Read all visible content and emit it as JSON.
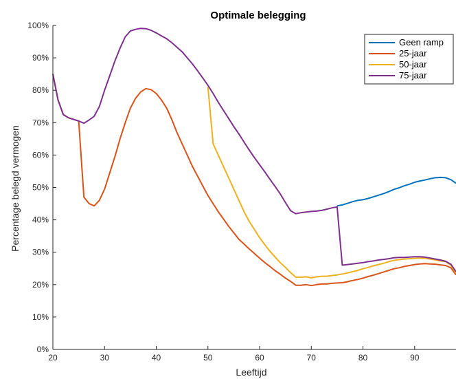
{
  "chart_data": {
    "type": "line",
    "title": "Optimale belegging",
    "xlabel": "Leeftijd",
    "ylabel": "Percentage belegd vermogen",
    "xlim": [
      20,
      98
    ],
    "ylim": [
      0,
      100
    ],
    "xticks": [
      20,
      30,
      40,
      50,
      60,
      70,
      80,
      90
    ],
    "yticks": [
      0,
      10,
      20,
      30,
      40,
      50,
      60,
      70,
      80,
      90,
      100
    ],
    "ytick_suffix": "%",
    "grid": false,
    "legend_position": "top-right",
    "series": [
      {
        "name": "Geen ramp",
        "color": "#0072bd",
        "points": [
          [
            75,
            44.3
          ],
          [
            76,
            44.6
          ],
          [
            77,
            45.1
          ],
          [
            78,
            45.6
          ],
          [
            79,
            46.0
          ],
          [
            80,
            46.2
          ],
          [
            81,
            46.6
          ],
          [
            82,
            47.1
          ],
          [
            83,
            47.6
          ],
          [
            84,
            48.1
          ],
          [
            85,
            48.7
          ],
          [
            86,
            49.4
          ],
          [
            87,
            49.9
          ],
          [
            88,
            50.5
          ],
          [
            89,
            51.0
          ],
          [
            90,
            51.6
          ],
          [
            91,
            52.0
          ],
          [
            92,
            52.3
          ],
          [
            93,
            52.7
          ],
          [
            94,
            53.0
          ],
          [
            95,
            53.1
          ],
          [
            96,
            53.0
          ],
          [
            97,
            52.4
          ],
          [
            98,
            51.3
          ]
        ]
      },
      {
        "name": "25-jaar",
        "color": "#d95319",
        "points": [
          [
            20,
            85.0
          ],
          [
            21,
            77.0
          ],
          [
            22,
            72.5
          ],
          [
            23,
            71.5
          ],
          [
            24,
            71.0
          ],
          [
            25,
            70.5
          ],
          [
            26,
            47.0
          ],
          [
            27,
            45.0
          ],
          [
            28,
            44.3
          ],
          [
            29,
            46.0
          ],
          [
            30,
            49.5
          ],
          [
            31,
            54.5
          ],
          [
            32,
            59.5
          ],
          [
            33,
            65.0
          ],
          [
            34,
            70.0
          ],
          [
            35,
            74.5
          ],
          [
            36,
            77.5
          ],
          [
            37,
            79.5
          ],
          [
            38,
            80.5
          ],
          [
            39,
            80.2
          ],
          [
            40,
            79.0
          ],
          [
            41,
            77.0
          ],
          [
            42,
            74.5
          ],
          [
            43,
            71.0
          ],
          [
            44,
            67.0
          ],
          [
            45,
            63.5
          ],
          [
            46,
            60.0
          ],
          [
            47,
            56.5
          ],
          [
            48,
            53.5
          ],
          [
            49,
            50.5
          ],
          [
            50,
            47.5
          ],
          [
            51,
            45.0
          ],
          [
            52,
            42.5
          ],
          [
            53,
            40.3
          ],
          [
            54,
            38.0
          ],
          [
            55,
            36.0
          ],
          [
            56,
            34.0
          ],
          [
            57,
            32.5
          ],
          [
            58,
            31.0
          ],
          [
            59,
            29.6
          ],
          [
            60,
            28.2
          ],
          [
            61,
            26.8
          ],
          [
            62,
            25.6
          ],
          [
            63,
            24.3
          ],
          [
            64,
            23.2
          ],
          [
            65,
            22.0
          ],
          [
            66,
            21.0
          ],
          [
            67,
            19.8
          ],
          [
            68,
            19.8
          ],
          [
            69,
            20.0
          ],
          [
            70,
            19.7
          ],
          [
            71,
            20.0
          ],
          [
            72,
            20.2
          ],
          [
            73,
            20.2
          ],
          [
            74,
            20.4
          ],
          [
            75,
            20.5
          ],
          [
            76,
            20.6
          ],
          [
            77,
            20.9
          ],
          [
            78,
            21.3
          ],
          [
            79,
            21.6
          ],
          [
            80,
            22.0
          ],
          [
            81,
            22.5
          ],
          [
            82,
            22.9
          ],
          [
            83,
            23.4
          ],
          [
            84,
            23.9
          ],
          [
            85,
            24.4
          ],
          [
            86,
            24.9
          ],
          [
            87,
            25.2
          ],
          [
            88,
            25.6
          ],
          [
            89,
            25.9
          ],
          [
            90,
            26.2
          ],
          [
            91,
            26.4
          ],
          [
            92,
            26.5
          ],
          [
            93,
            26.4
          ],
          [
            94,
            26.3
          ],
          [
            95,
            26.1
          ],
          [
            96,
            25.9
          ],
          [
            97,
            25.2
          ],
          [
            98,
            23.0
          ]
        ]
      },
      {
        "name": "50-jaar",
        "color": "#edb120",
        "points": [
          [
            50,
            81.0
          ],
          [
            51,
            63.5
          ],
          [
            52,
            60.0
          ],
          [
            53,
            56.5
          ],
          [
            54,
            53.0
          ],
          [
            55,
            49.5
          ],
          [
            56,
            46.0
          ],
          [
            57,
            42.5
          ],
          [
            58,
            39.5
          ],
          [
            59,
            37.0
          ],
          [
            60,
            34.5
          ],
          [
            61,
            32.3
          ],
          [
            62,
            30.3
          ],
          [
            63,
            28.5
          ],
          [
            64,
            26.8
          ],
          [
            65,
            25.3
          ],
          [
            66,
            23.7
          ],
          [
            67,
            22.3
          ],
          [
            68,
            22.3
          ],
          [
            69,
            22.4
          ],
          [
            70,
            22.1
          ],
          [
            71,
            22.4
          ],
          [
            72,
            22.6
          ],
          [
            73,
            22.6
          ],
          [
            74,
            22.8
          ],
          [
            75,
            23.0
          ],
          [
            76,
            23.3
          ],
          [
            77,
            23.6
          ],
          [
            78,
            24.0
          ],
          [
            79,
            24.4
          ],
          [
            80,
            24.9
          ],
          [
            81,
            25.3
          ],
          [
            82,
            25.8
          ],
          [
            83,
            26.2
          ],
          [
            84,
            26.6
          ],
          [
            85,
            27.1
          ],
          [
            86,
            27.5
          ],
          [
            87,
            27.7
          ],
          [
            88,
            27.9
          ],
          [
            89,
            28.0
          ],
          [
            90,
            28.1
          ],
          [
            91,
            28.2
          ],
          [
            92,
            28.1
          ],
          [
            93,
            27.9
          ],
          [
            94,
            27.6
          ],
          [
            95,
            27.3
          ],
          [
            96,
            27.1
          ],
          [
            97,
            26.0
          ],
          [
            98,
            23.5
          ]
        ]
      },
      {
        "name": "75-jaar",
        "color": "#7e2f8e",
        "points": [
          [
            20,
            85.0
          ],
          [
            21,
            77.0
          ],
          [
            22,
            72.5
          ],
          [
            23,
            71.5
          ],
          [
            24,
            71.0
          ],
          [
            25,
            70.5
          ],
          [
            26,
            69.8
          ],
          [
            27,
            70.8
          ],
          [
            28,
            72.0
          ],
          [
            29,
            75.0
          ],
          [
            30,
            80.0
          ],
          [
            31,
            84.5
          ],
          [
            32,
            89.0
          ],
          [
            33,
            93.0
          ],
          [
            34,
            96.5
          ],
          [
            35,
            98.3
          ],
          [
            36,
            98.8
          ],
          [
            37,
            99.1
          ],
          [
            38,
            99.0
          ],
          [
            39,
            98.5
          ],
          [
            40,
            97.7
          ],
          [
            41,
            96.8
          ],
          [
            42,
            95.9
          ],
          [
            43,
            94.7
          ],
          [
            44,
            93.3
          ],
          [
            45,
            91.9
          ],
          [
            46,
            90.0
          ],
          [
            47,
            88.1
          ],
          [
            48,
            86.0
          ],
          [
            49,
            83.8
          ],
          [
            50,
            81.5
          ],
          [
            51,
            79.0
          ],
          [
            52,
            76.3
          ],
          [
            53,
            73.8
          ],
          [
            54,
            71.3
          ],
          [
            55,
            68.8
          ],
          [
            56,
            66.5
          ],
          [
            57,
            64.0
          ],
          [
            58,
            61.5
          ],
          [
            59,
            59.2
          ],
          [
            60,
            57.0
          ],
          [
            61,
            54.8
          ],
          [
            62,
            52.5
          ],
          [
            63,
            50.3
          ],
          [
            64,
            48.0
          ],
          [
            65,
            45.3
          ],
          [
            66,
            42.8
          ],
          [
            67,
            41.9
          ],
          [
            68,
            42.2
          ],
          [
            69,
            42.4
          ],
          [
            70,
            42.6
          ],
          [
            71,
            42.7
          ],
          [
            72,
            42.9
          ],
          [
            73,
            43.3
          ],
          [
            74,
            43.7
          ],
          [
            75,
            44.0
          ],
          [
            76,
            26.0
          ],
          [
            77,
            26.2
          ],
          [
            78,
            26.4
          ],
          [
            79,
            26.6
          ],
          [
            80,
            26.8
          ],
          [
            81,
            27.1
          ],
          [
            82,
            27.3
          ],
          [
            83,
            27.6
          ],
          [
            84,
            27.8
          ],
          [
            85,
            28.0
          ],
          [
            86,
            28.3
          ],
          [
            87,
            28.4
          ],
          [
            88,
            28.4
          ],
          [
            89,
            28.5
          ],
          [
            90,
            28.6
          ],
          [
            91,
            28.6
          ],
          [
            92,
            28.5
          ],
          [
            93,
            28.2
          ],
          [
            94,
            27.9
          ],
          [
            95,
            27.6
          ],
          [
            96,
            27.2
          ],
          [
            97,
            26.3
          ],
          [
            98,
            24.0
          ]
        ]
      }
    ]
  }
}
